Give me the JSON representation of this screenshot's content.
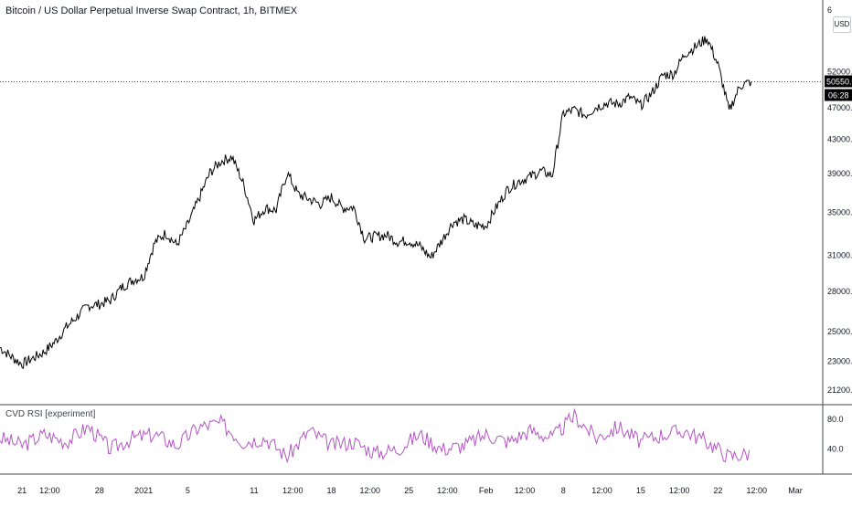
{
  "header": {
    "title": "Bitcoin / US Dollar Perpetual Inverse Swap Contract, 1h, BITMEX",
    "currency": "USD",
    "top_tick": "6"
  },
  "indicator": {
    "name": "CVD RSI [experiment]"
  },
  "price_axis": {
    "ticks": [
      "52000.0",
      "47000.0",
      "43000.0",
      "39000.0",
      "35000.0",
      "31000.0",
      "28000.0",
      "25000.0",
      "23000.0",
      "21200.0"
    ],
    "last_price_label": "50550.0",
    "countdown_label": "06:28"
  },
  "rsi_axis": {
    "ticks": [
      "80.0",
      "40.0"
    ]
  },
  "time_axis": {
    "ticks": [
      "21",
      "12:00",
      "28",
      "2021",
      "5",
      "11",
      "12:00",
      "18",
      "12:00",
      "25",
      "12:00",
      "Feb",
      "12:00",
      "8",
      "12:00",
      "15",
      "12:00",
      "22",
      "12:00",
      "Mar"
    ]
  },
  "colors": {
    "price_line": "#000000",
    "rsi_line": "#b455c5",
    "last_price_bg": "#000000",
    "grid_separator": "#434651"
  },
  "chart_data": [
    {
      "type": "line",
      "title": "Bitcoin / US Dollar Perpetual Inverse Swap Contract, 1h, BITMEX",
      "y_scale": "log",
      "y_range": [
        20500,
        63000
      ],
      "x_range": [
        "2020-12-19",
        "2021-03-01"
      ],
      "last_value": 50550,
      "series": [
        {
          "x": [
            "2020-12-19",
            "2020-12-20",
            "2020-12-21",
            "2020-12-22",
            "2020-12-23",
            "2020-12-24",
            "2020-12-25",
            "2020-12-26",
            "2020-12-27",
            "2020-12-28",
            "2020-12-29",
            "2020-12-30",
            "2020-12-31",
            "2021-01-01",
            "2021-01-02",
            "2021-01-03",
            "2021-01-04",
            "2021-01-05",
            "2021-01-06",
            "2021-01-07",
            "2021-01-08",
            "2021-01-09",
            "2021-01-10",
            "2021-01-11",
            "2021-01-12",
            "2021-01-13",
            "2021-01-14",
            "2021-01-15",
            "2021-01-16",
            "2021-01-17",
            "2021-01-18",
            "2021-01-19",
            "2021-01-20",
            "2021-01-21",
            "2021-01-22",
            "2021-01-23",
            "2021-01-24",
            "2021-01-25",
            "2021-01-26",
            "2021-01-27",
            "2021-01-28",
            "2021-01-29",
            "2021-01-30",
            "2021-01-31",
            "2021-02-01",
            "2021-02-02",
            "2021-02-03",
            "2021-02-04",
            "2021-02-05",
            "2021-02-06",
            "2021-02-07",
            "2021-02-08",
            "2021-02-09",
            "2021-02-10",
            "2021-02-11",
            "2021-02-12",
            "2021-02-13",
            "2021-02-14",
            "2021-02-15",
            "2021-02-16",
            "2021-02-17",
            "2021-02-18",
            "2021-02-19",
            "2021-02-20",
            "2021-02-21",
            "2021-02-22",
            "2021-02-23",
            "2021-02-24",
            "2021-02-25"
          ],
          "y": [
            23900,
            23300,
            22800,
            23200,
            23600,
            24300,
            25300,
            26100,
            26900,
            27000,
            27300,
            28300,
            28900,
            29200,
            32100,
            33000,
            31900,
            33800,
            36300,
            39100,
            40400,
            40900,
            38000,
            34200,
            35400,
            35200,
            39100,
            36800,
            36300,
            35800,
            36500,
            35400,
            35500,
            32500,
            32700,
            32800,
            32200,
            32300,
            31800,
            30800,
            32300,
            34000,
            34300,
            33700,
            33700,
            35600,
            37400,
            38200,
            38700,
            39300,
            38800,
            46200,
            46700,
            46000,
            47100,
            47600,
            47500,
            48400,
            47300,
            48900,
            51500,
            51700,
            54700,
            55800,
            57200,
            53000,
            46500,
            50000,
            50550
          ]
        }
      ]
    },
    {
      "type": "line",
      "title": "CVD RSI [experiment]",
      "y_range": [
        10,
        95
      ],
      "series": [
        {
          "x": [
            "2020-12-19",
            "2020-12-21",
            "2020-12-23",
            "2020-12-25",
            "2020-12-27",
            "2020-12-29",
            "2020-12-31",
            "2021-01-02",
            "2021-01-04",
            "2021-01-06",
            "2021-01-08",
            "2021-01-10",
            "2021-01-12",
            "2021-01-14",
            "2021-01-16",
            "2021-01-18",
            "2021-01-20",
            "2021-01-22",
            "2021-01-24",
            "2021-01-26",
            "2021-01-28",
            "2021-01-30",
            "2021-02-01",
            "2021-02-03",
            "2021-02-05",
            "2021-02-07",
            "2021-02-09",
            "2021-02-11",
            "2021-02-13",
            "2021-02-15",
            "2021-02-17",
            "2021-02-19",
            "2021-02-21",
            "2021-02-23",
            "2021-02-25"
          ],
          "y": [
            55,
            45,
            60,
            50,
            70,
            40,
            55,
            60,
            45,
            70,
            75,
            50,
            55,
            30,
            65,
            45,
            50,
            35,
            40,
            60,
            40,
            45,
            60,
            50,
            65,
            55,
            85,
            55,
            70,
            50,
            60,
            65,
            50,
            30,
            35
          ]
        }
      ]
    }
  ]
}
